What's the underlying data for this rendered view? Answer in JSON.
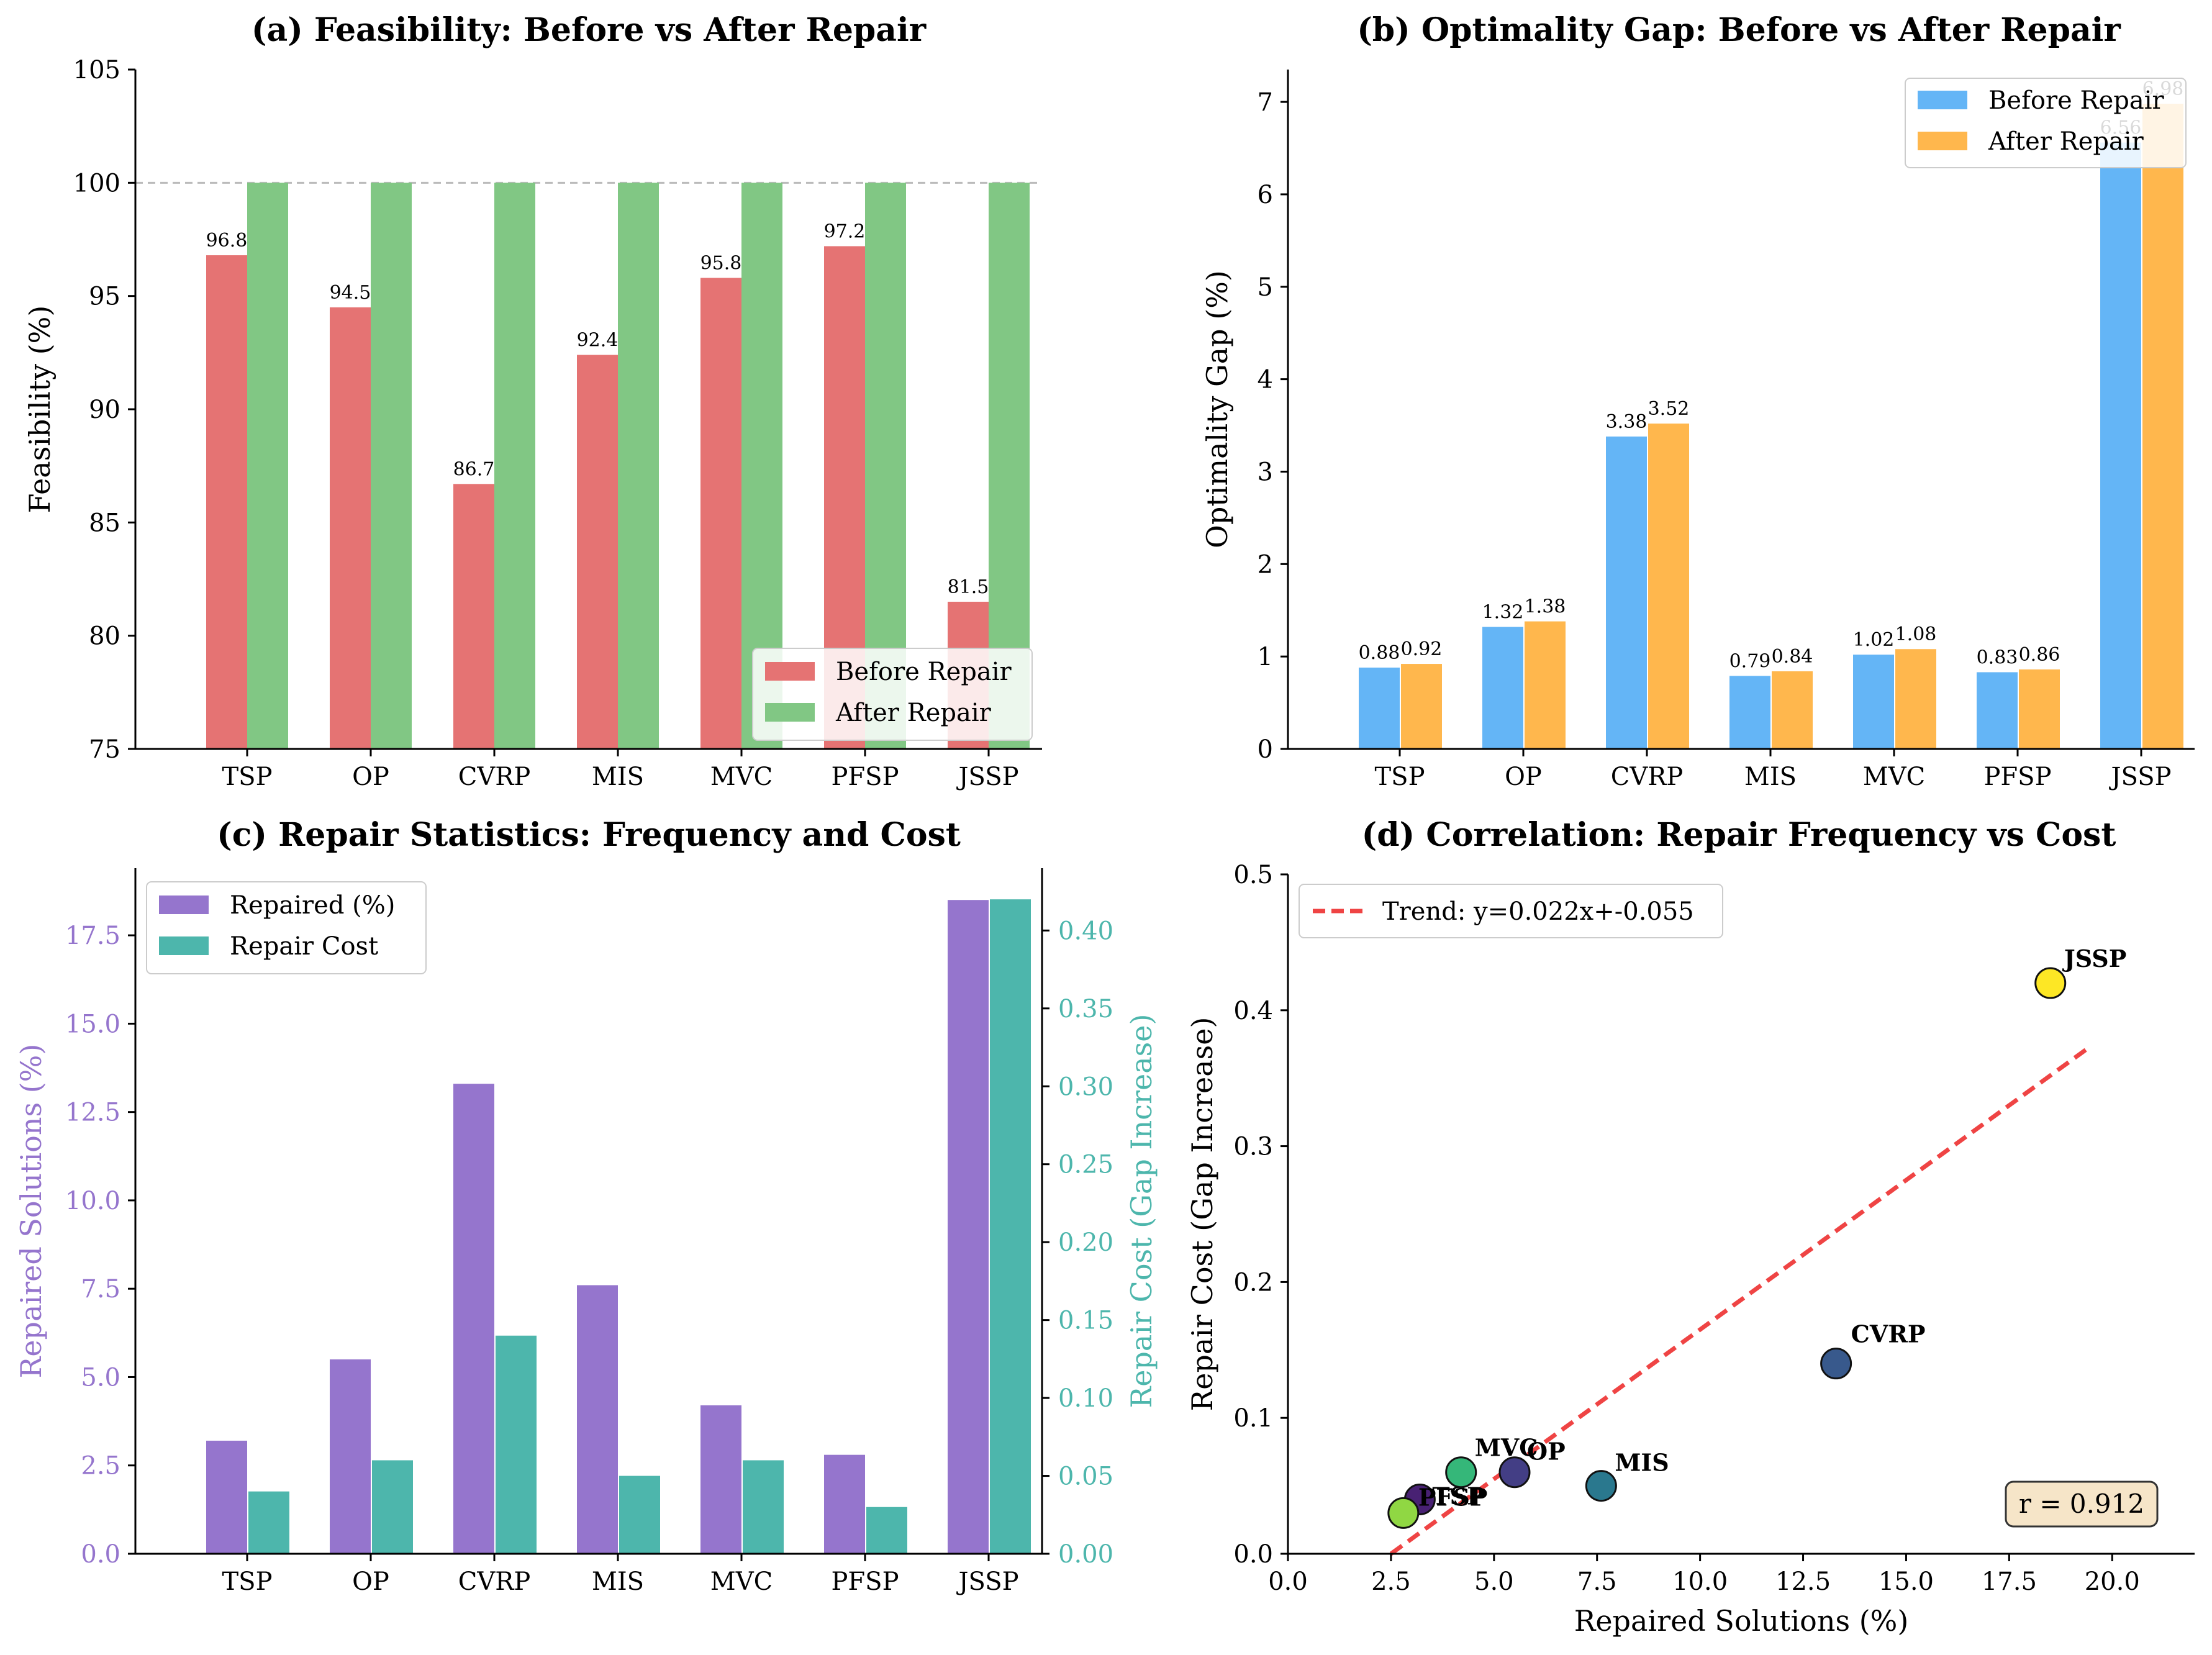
{
  "colors": {
    "before_a": "#e57373",
    "after_a": "#81c784",
    "before_b": "#64b5f6",
    "after_b": "#ffb74d",
    "repaired": "#9575cd",
    "cost": "#4db6ac",
    "trend": "#ef4444",
    "cost_axis": "#4db6ac",
    "repaired_axis": "#9575cd"
  },
  "chart_data": [
    {
      "id": "a",
      "type": "bar",
      "title": "(a) Feasibility: Before vs After Repair",
      "xlabel": "",
      "ylabel": "Feasibility (%)",
      "categories": [
        "TSP",
        "OP",
        "CVRP",
        "MIS",
        "MVC",
        "PFSP",
        "JSSP"
      ],
      "series": [
        {
          "name": "Before Repair",
          "values": [
            96.8,
            94.5,
            86.7,
            92.4,
            95.8,
            97.2,
            81.5
          ],
          "labels": [
            "96.8",
            "94.5",
            "86.7",
            "92.4",
            "95.8",
            "97.2",
            "81.5"
          ]
        },
        {
          "name": "After Repair",
          "values": [
            100,
            100,
            100,
            100,
            100,
            100,
            100
          ]
        }
      ],
      "ylim": [
        75,
        105
      ],
      "yticks": [
        "75",
        "80",
        "85",
        "90",
        "95",
        "100",
        "105"
      ],
      "reference_line": 100,
      "legend": "lower-right"
    },
    {
      "id": "b",
      "type": "bar",
      "title": "(b) Optimality Gap: Before vs After Repair",
      "xlabel": "",
      "ylabel": "Optimality Gap (%)",
      "categories": [
        "TSP",
        "OP",
        "CVRP",
        "MIS",
        "MVC",
        "PFSP",
        "JSSP"
      ],
      "series": [
        {
          "name": "Before Repair",
          "values": [
            0.88,
            1.32,
            3.38,
            0.79,
            1.02,
            0.83,
            6.56
          ],
          "labels": [
            "0.88",
            "1.32",
            "3.38",
            "0.79",
            "1.02",
            "0.83",
            "6.56"
          ]
        },
        {
          "name": "After Repair",
          "values": [
            0.92,
            1.38,
            3.52,
            0.84,
            1.08,
            0.86,
            6.98
          ],
          "labels": [
            "0.92",
            "1.38",
            "3.52",
            "0.84",
            "1.08",
            "0.86",
            "6.98"
          ]
        }
      ],
      "ylim": [
        0,
        7.35
      ],
      "yticks": [
        "0",
        "1",
        "2",
        "3",
        "4",
        "5",
        "6",
        "7"
      ],
      "legend": "upper-right"
    },
    {
      "id": "c",
      "type": "bar",
      "title": "(c) Repair Statistics: Frequency and Cost",
      "xlabel": "",
      "ylabel": "Repaired Solutions (%)",
      "ylabel_right": "Repair Cost (Gap Increase)",
      "categories": [
        "TSP",
        "OP",
        "CVRP",
        "MIS",
        "MVC",
        "PFSP",
        "JSSP"
      ],
      "series": [
        {
          "name": "Repaired (%)",
          "axis": "left",
          "values": [
            3.2,
            5.5,
            13.3,
            7.6,
            4.2,
            2.8,
            18.5
          ]
        },
        {
          "name": "Repair Cost",
          "axis": "right",
          "values": [
            0.04,
            0.06,
            0.14,
            0.05,
            0.06,
            0.03,
            0.42
          ]
        }
      ],
      "ylim": [
        0,
        19.4
      ],
      "ylim_right": [
        0,
        0.44
      ],
      "yticks": [
        "0.0",
        "2.5",
        "5.0",
        "7.5",
        "10.0",
        "12.5",
        "15.0",
        "17.5"
      ],
      "yticks_right": [
        "0.00",
        "0.05",
        "0.10",
        "0.15",
        "0.20",
        "0.25",
        "0.30",
        "0.35",
        "0.40"
      ],
      "legend": "upper-left"
    },
    {
      "id": "d",
      "type": "scatter",
      "title": "(d) Correlation: Repair Frequency vs Cost",
      "xlabel": "Repaired Solutions (%)",
      "ylabel": "Repair Cost (Gap Increase)",
      "points": [
        {
          "label": "TSP",
          "x": 3.2,
          "y": 0.04,
          "color": "#482173"
        },
        {
          "label": "OP",
          "x": 5.5,
          "y": 0.06,
          "color": "#433e85"
        },
        {
          "label": "CVRP",
          "x": 13.3,
          "y": 0.14,
          "color": "#38598c"
        },
        {
          "label": "MIS",
          "x": 7.6,
          "y": 0.05,
          "color": "#2a788e"
        },
        {
          "label": "MVC",
          "x": 4.2,
          "y": 0.06,
          "color": "#35b779"
        },
        {
          "label": "PFSP",
          "x": 2.8,
          "y": 0.03,
          "color": "#90d743"
        },
        {
          "label": "JSSP",
          "x": 18.5,
          "y": 0.42,
          "color": "#fde725"
        }
      ],
      "trend": {
        "name": "Trend: y=0.022x+-0.055",
        "slope": 0.022,
        "intercept": -0.055,
        "x_range": [
          2.5,
          19.5
        ]
      },
      "annotation": "r = 0.912",
      "xlim": [
        0,
        22
      ],
      "ylim": [
        0,
        0.5
      ],
      "xticks": [
        "0.0",
        "2.5",
        "5.0",
        "7.5",
        "10.0",
        "12.5",
        "15.0",
        "17.5",
        "20.0"
      ],
      "yticks": [
        "0.0",
        "0.1",
        "0.2",
        "0.3",
        "0.4",
        "0.5"
      ],
      "legend": "upper-left"
    }
  ]
}
